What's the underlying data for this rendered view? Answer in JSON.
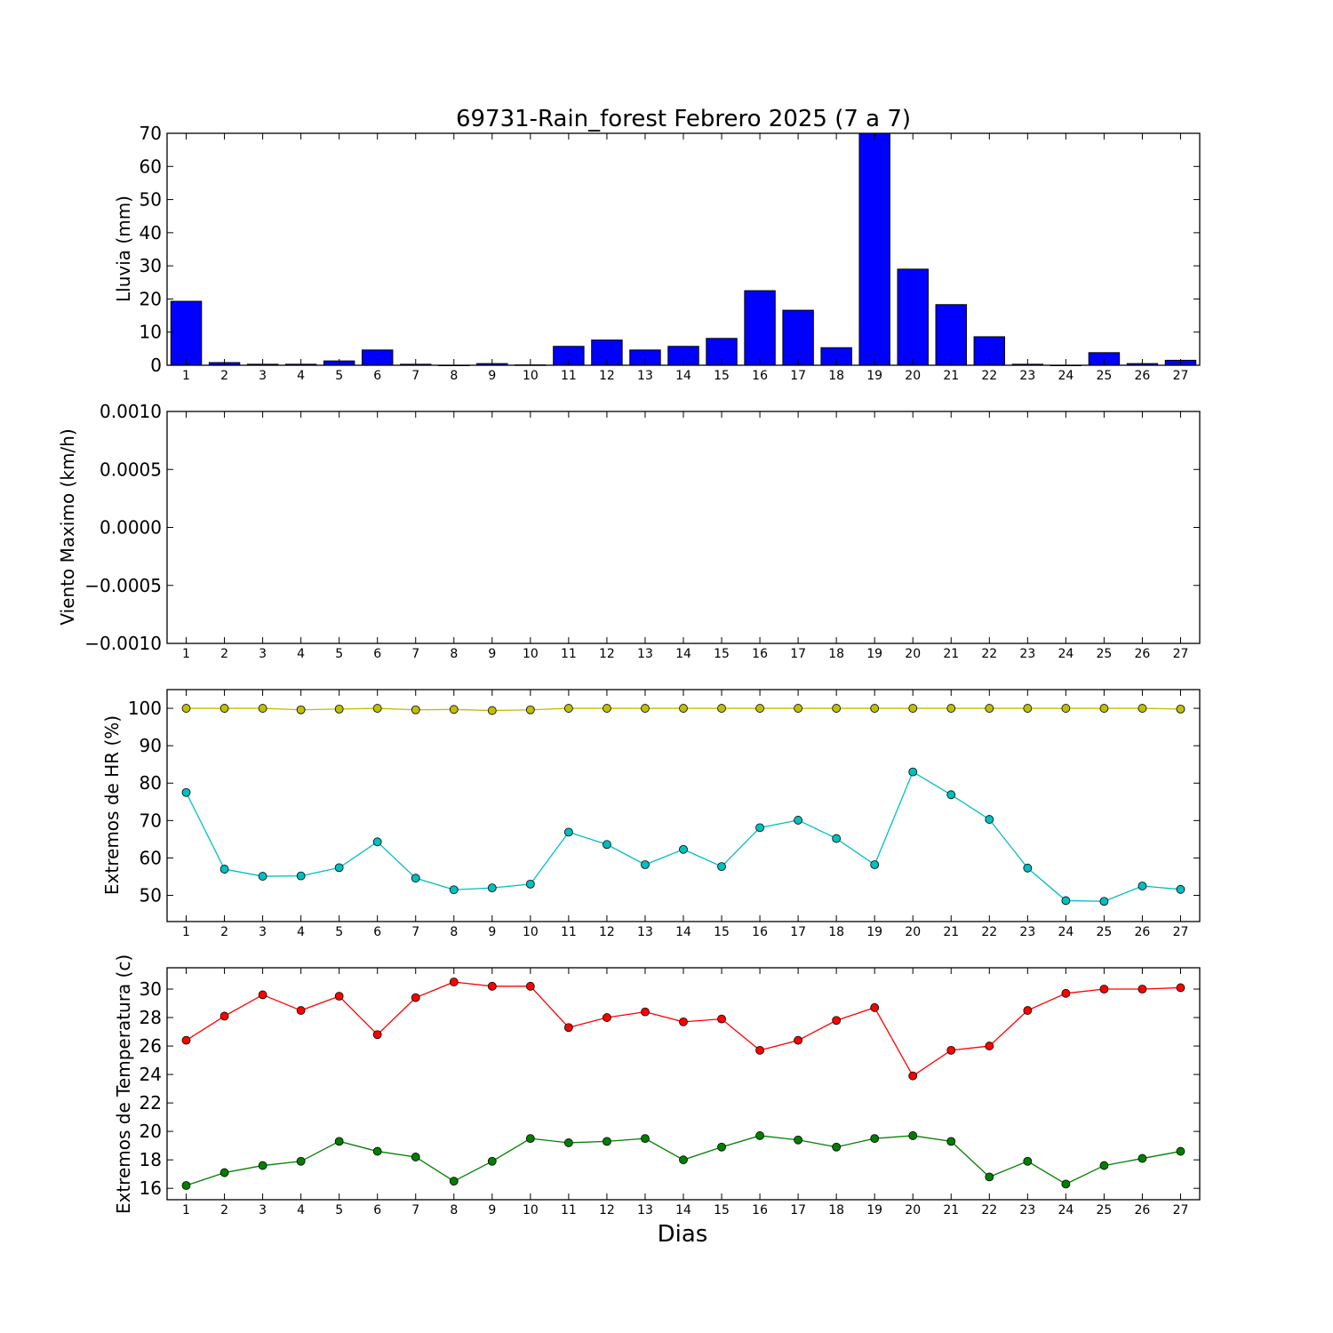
{
  "figure": {
    "title": "69731-Rain_forest Febrero 2025  (7 a 7)",
    "xlabel": "Dias"
  },
  "chart_data": [
    {
      "type": "bar",
      "ylabel": "Lluvia (mm)",
      "categories": [
        "1",
        "2",
        "3",
        "4",
        "5",
        "6",
        "7",
        "8",
        "9",
        "10",
        "11",
        "12",
        "13",
        "14",
        "15",
        "16",
        "17",
        "18",
        "19",
        "20",
        "21",
        "22",
        "23",
        "24",
        "25",
        "26",
        "27"
      ],
      "values": [
        19.3,
        0.8,
        0.3,
        0.3,
        1.3,
        4.6,
        0.3,
        0,
        0.5,
        0.1,
        5.7,
        7.6,
        4.6,
        5.7,
        8.1,
        22.5,
        16.6,
        5.3,
        70,
        29.0,
        18.3,
        8.6,
        0.3,
        0,
        3.8,
        0.5,
        1.5
      ],
      "ylim": [
        0,
        70
      ],
      "yticks": [
        "0",
        "10",
        "20",
        "30",
        "40",
        "50",
        "60",
        "70"
      ],
      "color": "#0000ff"
    },
    {
      "type": "line",
      "ylabel": "Viento Maximo (km/h)",
      "categories": [
        "1",
        "2",
        "3",
        "4",
        "5",
        "6",
        "7",
        "8",
        "9",
        "10",
        "11",
        "12",
        "13",
        "14",
        "15",
        "16",
        "17",
        "18",
        "19",
        "20",
        "21",
        "22",
        "23",
        "24",
        "25",
        "26",
        "27"
      ],
      "series": [],
      "ylim": [
        -0.001,
        0.001
      ],
      "yticks": [
        "−0.0010",
        "−0.0005",
        "0.0000",
        "0.0005",
        "0.0010"
      ]
    },
    {
      "type": "line",
      "ylabel": "Extremos de HR (%)",
      "categories": [
        "1",
        "2",
        "3",
        "4",
        "5",
        "6",
        "7",
        "8",
        "9",
        "10",
        "11",
        "12",
        "13",
        "14",
        "15",
        "16",
        "17",
        "18",
        "19",
        "20",
        "21",
        "22",
        "23",
        "24",
        "25",
        "26",
        "27"
      ],
      "series": [
        {
          "color": "#bfbf00",
          "values": [
            100,
            100,
            100,
            99.6,
            99.8,
            100,
            99.6,
            99.7,
            99.4,
            99.6,
            100,
            100,
            100,
            100,
            100,
            100,
            100,
            100,
            100,
            100,
            100,
            100,
            100,
            100,
            100,
            100,
            99.8
          ]
        },
        {
          "color": "#00bfbf",
          "values": [
            77.5,
            57.0,
            55.1,
            55.2,
            57.4,
            64.3,
            54.6,
            51.5,
            52.0,
            53.0,
            66.9,
            63.6,
            58.2,
            62.3,
            57.7,
            68.1,
            70.1,
            65.2,
            58.2,
            83.0,
            76.9,
            70.3,
            57.3,
            48.6,
            48.4,
            52.5,
            51.6
          ]
        }
      ],
      "ylim": [
        43,
        105
      ],
      "yticks": [
        "50",
        "60",
        "70",
        "80",
        "90",
        "100"
      ]
    },
    {
      "type": "line",
      "ylabel": "Extremos de Temperatura (c)",
      "categories": [
        "1",
        "2",
        "3",
        "4",
        "5",
        "6",
        "7",
        "8",
        "9",
        "10",
        "11",
        "12",
        "13",
        "14",
        "15",
        "16",
        "17",
        "18",
        "19",
        "20",
        "21",
        "22",
        "23",
        "24",
        "25",
        "26",
        "27"
      ],
      "series": [
        {
          "color": "#ff0000",
          "values": [
            26.4,
            28.1,
            29.6,
            28.5,
            29.5,
            26.8,
            29.4,
            30.5,
            30.2,
            30.2,
            27.3,
            28.0,
            28.4,
            27.7,
            27.9,
            25.7,
            26.4,
            27.8,
            28.7,
            23.9,
            25.7,
            26.0,
            28.5,
            29.7,
            30.0,
            30.0,
            30.1
          ]
        },
        {
          "color": "#007f00",
          "values": [
            16.2,
            17.1,
            17.6,
            17.9,
            19.3,
            18.6,
            18.2,
            16.5,
            17.9,
            19.5,
            19.2,
            19.3,
            19.5,
            18.0,
            18.9,
            19.7,
            19.4,
            18.9,
            19.5,
            19.7,
            19.3,
            16.8,
            17.9,
            16.3,
            17.6,
            18.1,
            18.6
          ]
        }
      ],
      "ylim": [
        15.2,
        31.5
      ],
      "yticks": [
        "16",
        "18",
        "20",
        "22",
        "24",
        "26",
        "28",
        "30"
      ]
    }
  ]
}
